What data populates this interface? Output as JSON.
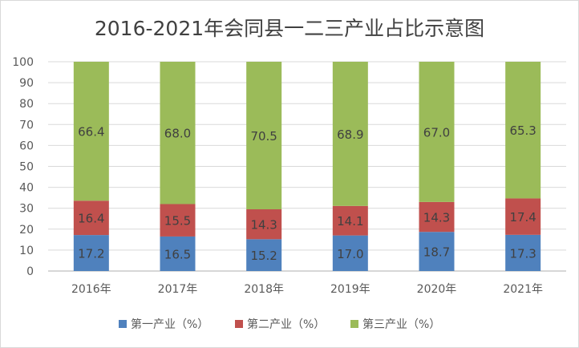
{
  "chart_data": {
    "type": "bar",
    "stacked": true,
    "title": "2016-2021年会同县一二三产业占比示意图",
    "xlabel": "",
    "ylabel": "",
    "ylim": [
      0,
      100
    ],
    "yticks": [
      0,
      10,
      20,
      30,
      40,
      50,
      60,
      70,
      80,
      90,
      100
    ],
    "grid": true,
    "legend_position": "bottom",
    "categories": [
      "2016年",
      "2017年",
      "2018年",
      "2019年",
      "2020年",
      "2021年"
    ],
    "series": [
      {
        "name": "第一产业（%）",
        "color": "#4f81bd",
        "values": [
          17.2,
          16.5,
          15.2,
          17.0,
          18.7,
          17.3
        ],
        "labels": [
          "17.2",
          "16.5",
          "15.2",
          "17.0",
          "18.7",
          "17.3"
        ]
      },
      {
        "name": "第二产业（%）",
        "color": "#c0504d",
        "values": [
          16.4,
          15.5,
          14.3,
          14.1,
          14.3,
          17.4
        ],
        "labels": [
          "16.4",
          "15.5",
          "14.3",
          "14.1",
          "14.3",
          "17.4"
        ]
      },
      {
        "name": "第三产业（%）",
        "color": "#9bbb59",
        "values": [
          66.4,
          68.0,
          70.5,
          68.9,
          67.0,
          65.3
        ],
        "labels": [
          "66.4",
          "68.0",
          "70.5",
          "68.9",
          "67.0",
          "65.3"
        ]
      }
    ]
  }
}
